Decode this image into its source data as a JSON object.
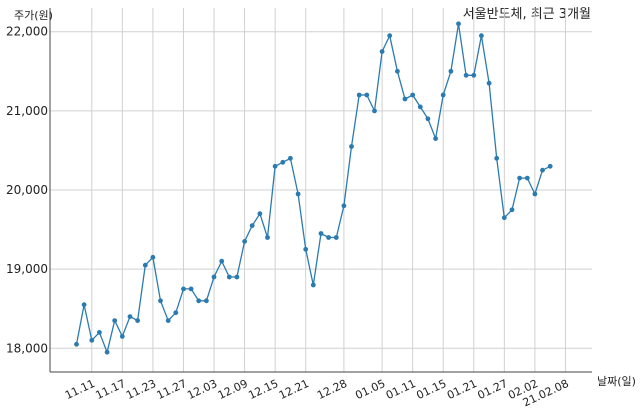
{
  "chart_data": {
    "type": "line",
    "title": "서울반도체, 최근 3개월",
    "ylabel": "주가(원)",
    "xlabel": "날짜(일)",
    "ylim": [
      17700,
      22300
    ],
    "yticks": [
      18000,
      19000,
      20000,
      21000,
      22000
    ],
    "ytick_labels": [
      "18,000",
      "19,000",
      "20,000",
      "21,000",
      "22,000"
    ],
    "grid": true,
    "color": "#2b7bb0",
    "xtick_labels": [
      "11.11",
      "11.17",
      "11.23",
      "11.27",
      "12.03",
      "12.09",
      "12.15",
      "12.21",
      "12.28",
      "01.05",
      "01.11",
      "01.15",
      "01.21",
      "01.27",
      "02.02",
      "21.02.08"
    ],
    "xtick_index": [
      2,
      6,
      10,
      14,
      18,
      22,
      26,
      30,
      35,
      40,
      44,
      48,
      52,
      56,
      60,
      64
    ],
    "values": [
      18050,
      18550,
      18100,
      18200,
      17950,
      18350,
      18150,
      18400,
      18350,
      19050,
      19150,
      18600,
      18350,
      18450,
      18750,
      18750,
      18600,
      18600,
      18900,
      19100,
      18900,
      18900,
      19350,
      19550,
      19700,
      19400,
      20300,
      20350,
      20400,
      19950,
      19250,
      18800,
      19450,
      19400,
      19400,
      19800,
      20550,
      21200,
      21200,
      21000,
      21750,
      21950,
      21500,
      21150,
      21200,
      21050,
      20900,
      20650,
      21200,
      21500,
      22100,
      21450,
      21450,
      21950,
      21350,
      20400,
      19650,
      19750,
      20150,
      20150,
      19950,
      20250,
      20300
    ]
  }
}
